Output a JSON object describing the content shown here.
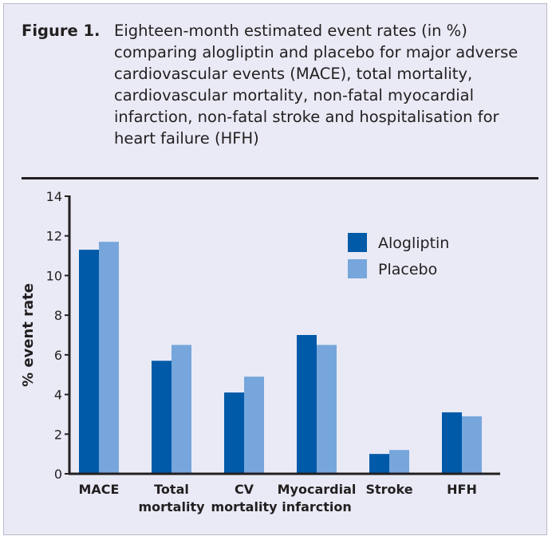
{
  "figure": {
    "label": "Figure 1.",
    "caption": "Eighteen-month estimated event rates (in %) comparing alogliptin and placebo for major adverse cardiovascular events (MACE), total mortality, cardiovascular mortality, non-fatal myocardial infarction, non-fatal stroke and hospitalisation for heart failure (HFH)"
  },
  "colors": {
    "alogliptin": "#005aa8",
    "placebo": "#77a6dc",
    "background": "#e9eaf5",
    "text": "#231f20"
  },
  "chart_data": {
    "type": "bar",
    "title": "",
    "xlabel": "",
    "ylabel": "% event rate",
    "ylim": [
      0,
      14
    ],
    "yticks": [
      0,
      2,
      4,
      6,
      8,
      10,
      12,
      14
    ],
    "categories": [
      [
        "MACE"
      ],
      [
        "Total",
        "mortality"
      ],
      [
        "CV",
        "mortality"
      ],
      [
        "Myocardial",
        "infarction"
      ],
      [
        "Stroke"
      ],
      [
        "HFH"
      ]
    ],
    "series": [
      {
        "name": "Alogliptin",
        "values": [
          11.3,
          5.7,
          4.1,
          7.0,
          1.0,
          3.1
        ]
      },
      {
        "name": "Placebo",
        "values": [
          11.7,
          6.5,
          4.9,
          6.5,
          1.2,
          2.9
        ]
      }
    ],
    "legend_position": "top-right"
  }
}
